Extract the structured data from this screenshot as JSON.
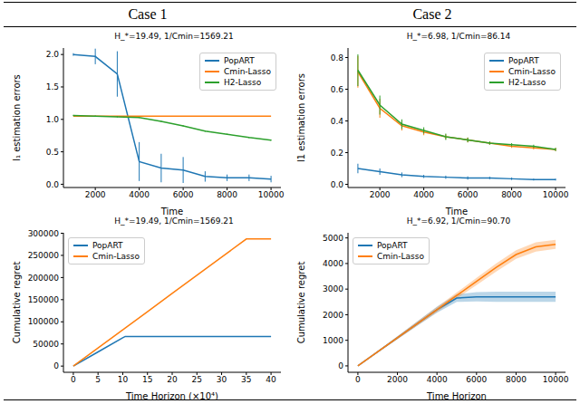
{
  "columns": [
    "Case 1",
    "Case 2"
  ],
  "chart_data": [
    {
      "type": "line",
      "title": "H_*=19.49, 1/Cmin=1569.21",
      "x_label": "Time",
      "y_label": "l₁ estimation errors",
      "x": [
        1000,
        2000,
        3000,
        4000,
        5000,
        6000,
        7000,
        8000,
        9000,
        10000
      ],
      "xlim": [
        550,
        10450
      ],
      "xticks": [
        2000,
        4000,
        6000,
        8000,
        10000
      ],
      "ylim": [
        -0.05,
        2.1
      ],
      "yticks": [
        {
          "value": 0,
          "label": "0.0"
        },
        {
          "value": 0.5,
          "label": "0.5"
        },
        {
          "value": 1,
          "label": "1.0"
        },
        {
          "value": 1.5,
          "label": "1.5"
        },
        {
          "value": 2,
          "label": "2.0"
        }
      ],
      "grid": false,
      "legend": "upper right",
      "marker": "none",
      "series": [
        {
          "name": "PopART",
          "color": "#1f77b4",
          "values": [
            2.0,
            1.97,
            1.7,
            0.35,
            0.25,
            0.22,
            0.12,
            0.1,
            0.1,
            0.08
          ],
          "errors": [
            0.02,
            0.12,
            0.35,
            0.3,
            0.22,
            0.2,
            0.08,
            0.05,
            0.05,
            0.05
          ]
        },
        {
          "name": "Cmin-Lasso",
          "color": "#ff7f0e",
          "values": [
            1.05,
            1.05,
            1.05,
            1.05,
            1.05,
            1.05,
            1.05,
            1.05,
            1.05,
            1.05
          ]
        },
        {
          "name": "H2-Lasso",
          "color": "#2ca02c",
          "values": [
            1.06,
            1.05,
            1.04,
            1.03,
            0.97,
            0.9,
            0.82,
            0.77,
            0.72,
            0.68
          ],
          "errors": [
            0.01,
            0.01,
            0.01,
            0.01,
            0.01,
            0.01,
            0.01,
            0.01,
            0.01,
            0.01
          ]
        }
      ]
    },
    {
      "type": "line",
      "title": "H_*=6.98, 1/Cmin=86.14",
      "x_label": "Time",
      "y_label": "l1 estimation errors",
      "x": [
        1000,
        2000,
        3000,
        4000,
        5000,
        6000,
        7000,
        8000,
        9000,
        10000
      ],
      "xlim": [
        550,
        10450
      ],
      "xticks": [
        2000,
        4000,
        6000,
        8000,
        10000
      ],
      "ylim": [
        -0.02,
        0.86
      ],
      "yticks": [
        {
          "value": 0,
          "label": "0.0"
        },
        {
          "value": 0.2,
          "label": "0.2"
        },
        {
          "value": 0.4,
          "label": "0.4"
        },
        {
          "value": 0.6,
          "label": "0.6"
        },
        {
          "value": 0.8,
          "label": "0.8"
        }
      ],
      "grid": false,
      "legend": "upper right",
      "marker": "none",
      "series": [
        {
          "name": "PopART",
          "color": "#1f77b4",
          "values": [
            0.1,
            0.08,
            0.06,
            0.05,
            0.045,
            0.04,
            0.04,
            0.035,
            0.03,
            0.03
          ],
          "errors": [
            0.03,
            0.02,
            0.015,
            0.01,
            0.01,
            0.01,
            0.008,
            0.008,
            0.006,
            0.006
          ]
        },
        {
          "name": "Cmin-Lasso",
          "color": "#ff7f0e",
          "values": [
            0.71,
            0.48,
            0.37,
            0.33,
            0.3,
            0.28,
            0.26,
            0.24,
            0.23,
            0.22
          ],
          "errors": [
            0.1,
            0.06,
            0.03,
            0.02,
            0.015,
            0.015,
            0.01,
            0.01,
            0.01,
            0.01
          ]
        },
        {
          "name": "H2-Lasso",
          "color": "#2ca02c",
          "values": [
            0.72,
            0.5,
            0.38,
            0.34,
            0.3,
            0.28,
            0.26,
            0.25,
            0.24,
            0.22
          ],
          "errors": [
            0.1,
            0.06,
            0.03,
            0.02,
            0.02,
            0.015,
            0.01,
            0.01,
            0.01,
            0.01
          ]
        }
      ]
    },
    {
      "type": "line",
      "title": "H_*=19.49, 1/Cmin=1569.21",
      "x_label": "Time Horizon (×10⁴)",
      "y_label": "Cumulative regret",
      "x": [
        0,
        5,
        10,
        10.5,
        15,
        20,
        25,
        30,
        35,
        40
      ],
      "xlim": [
        -2,
        42
      ],
      "xticks": [
        0,
        5,
        10,
        15,
        20,
        25,
        30,
        35,
        40
      ],
      "ylim": [
        -14000,
        301000
      ],
      "yticks": [
        0,
        50000,
        100000,
        150000,
        200000,
        250000,
        300000
      ],
      "grid": false,
      "legend": "upper left",
      "marker": "none",
      "series": [
        {
          "name": "PopART",
          "color": "#1f77b4",
          "values": [
            0,
            32000,
            64000,
            67000,
            67000,
            67000,
            67000,
            67000,
            67000,
            67000
          ]
        },
        {
          "name": "Cmin-Lasso",
          "color": "#ff7f0e",
          "values": [
            0,
            41000,
            82000,
            86000,
            123000,
            164000,
            205000,
            246000,
            287000,
            287000
          ]
        }
      ]
    },
    {
      "type": "line",
      "title": "H_*=6.92, 1/Cmin=90.70",
      "x_label": "Time Horizon",
      "y_label": "Cumulative regret",
      "x": [
        0,
        1000,
        2000,
        3000,
        4000,
        5000,
        6000,
        7000,
        8000,
        9000,
        10000
      ],
      "xlim": [
        -500,
        10500
      ],
      "xticks": [
        0,
        2000,
        4000,
        6000,
        8000,
        10000
      ],
      "ylim": [
        -250,
        5200
      ],
      "yticks": [
        0,
        1000,
        2000,
        3000,
        4000,
        5000
      ],
      "grid": false,
      "legend": "upper left",
      "marker": "none",
      "series": [
        {
          "name": "PopART",
          "color": "#1f77b4",
          "values": [
            0,
            550,
            1100,
            1650,
            2200,
            2650,
            2700,
            2700,
            2700,
            2700,
            2700
          ],
          "band": [
            0,
            30,
            60,
            90,
            120,
            150,
            180,
            200,
            200,
            200,
            200
          ]
        },
        {
          "name": "Cmin-Lasso",
          "color": "#ff7f0e",
          "values": [
            0,
            550,
            1100,
            1650,
            2200,
            2750,
            3300,
            3850,
            4350,
            4650,
            4750
          ],
          "band": [
            0,
            30,
            60,
            80,
            100,
            120,
            140,
            160,
            170,
            180,
            180
          ]
        }
      ]
    }
  ]
}
